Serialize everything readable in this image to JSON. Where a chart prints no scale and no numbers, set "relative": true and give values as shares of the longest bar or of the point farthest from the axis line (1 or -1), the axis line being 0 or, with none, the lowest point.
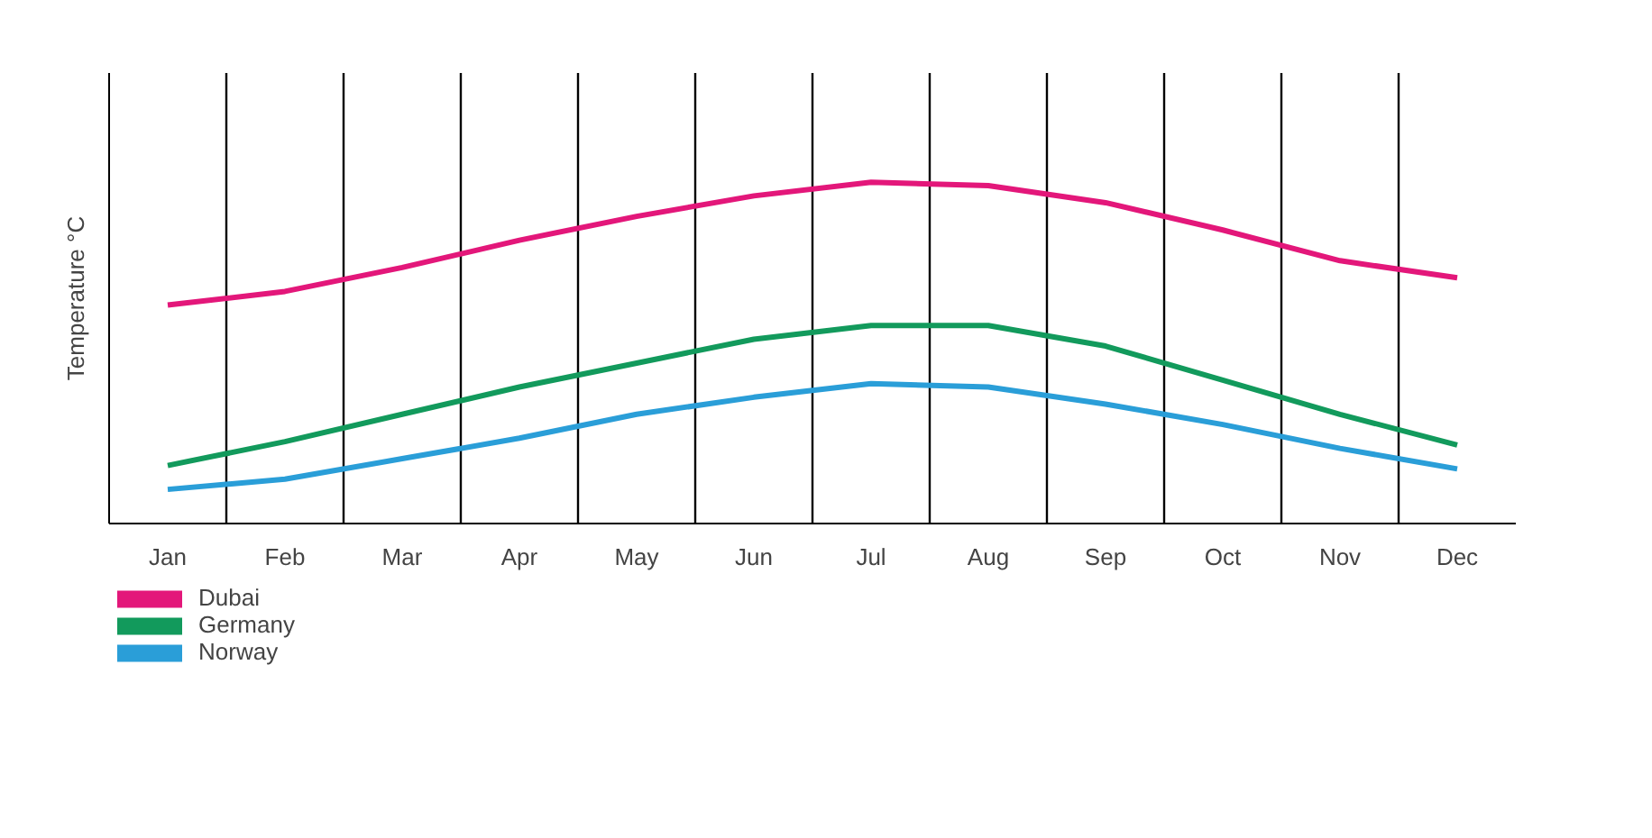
{
  "chart_data": {
    "type": "line",
    "relative": true,
    "ylabel": "Temperature °C",
    "categories": [
      "Jan",
      "Feb",
      "Mar",
      "Apr",
      "May",
      "Jun",
      "Jul",
      "Aug",
      "Sep",
      "Oct",
      "Nov",
      "Dec"
    ],
    "series": [
      {
        "name": "Dubai",
        "color": "#e3177a",
        "values": [
          0.64,
          0.68,
          0.75,
          0.83,
          0.9,
          0.96,
          1.0,
          0.99,
          0.94,
          0.86,
          0.77,
          0.72
        ]
      },
      {
        "name": "Germany",
        "color": "#129a5c",
        "values": [
          0.17,
          0.24,
          0.32,
          0.4,
          0.47,
          0.54,
          0.58,
          0.58,
          0.52,
          0.42,
          0.32,
          0.23
        ]
      },
      {
        "name": "Norway",
        "color": "#2a9ed8",
        "values": [
          0.1,
          0.13,
          0.19,
          0.25,
          0.32,
          0.37,
          0.41,
          0.4,
          0.35,
          0.29,
          0.22,
          0.16
        ]
      }
    ],
    "grid": "x",
    "legend": "bottom left",
    "marker": "none",
    "line_style": "solid"
  }
}
